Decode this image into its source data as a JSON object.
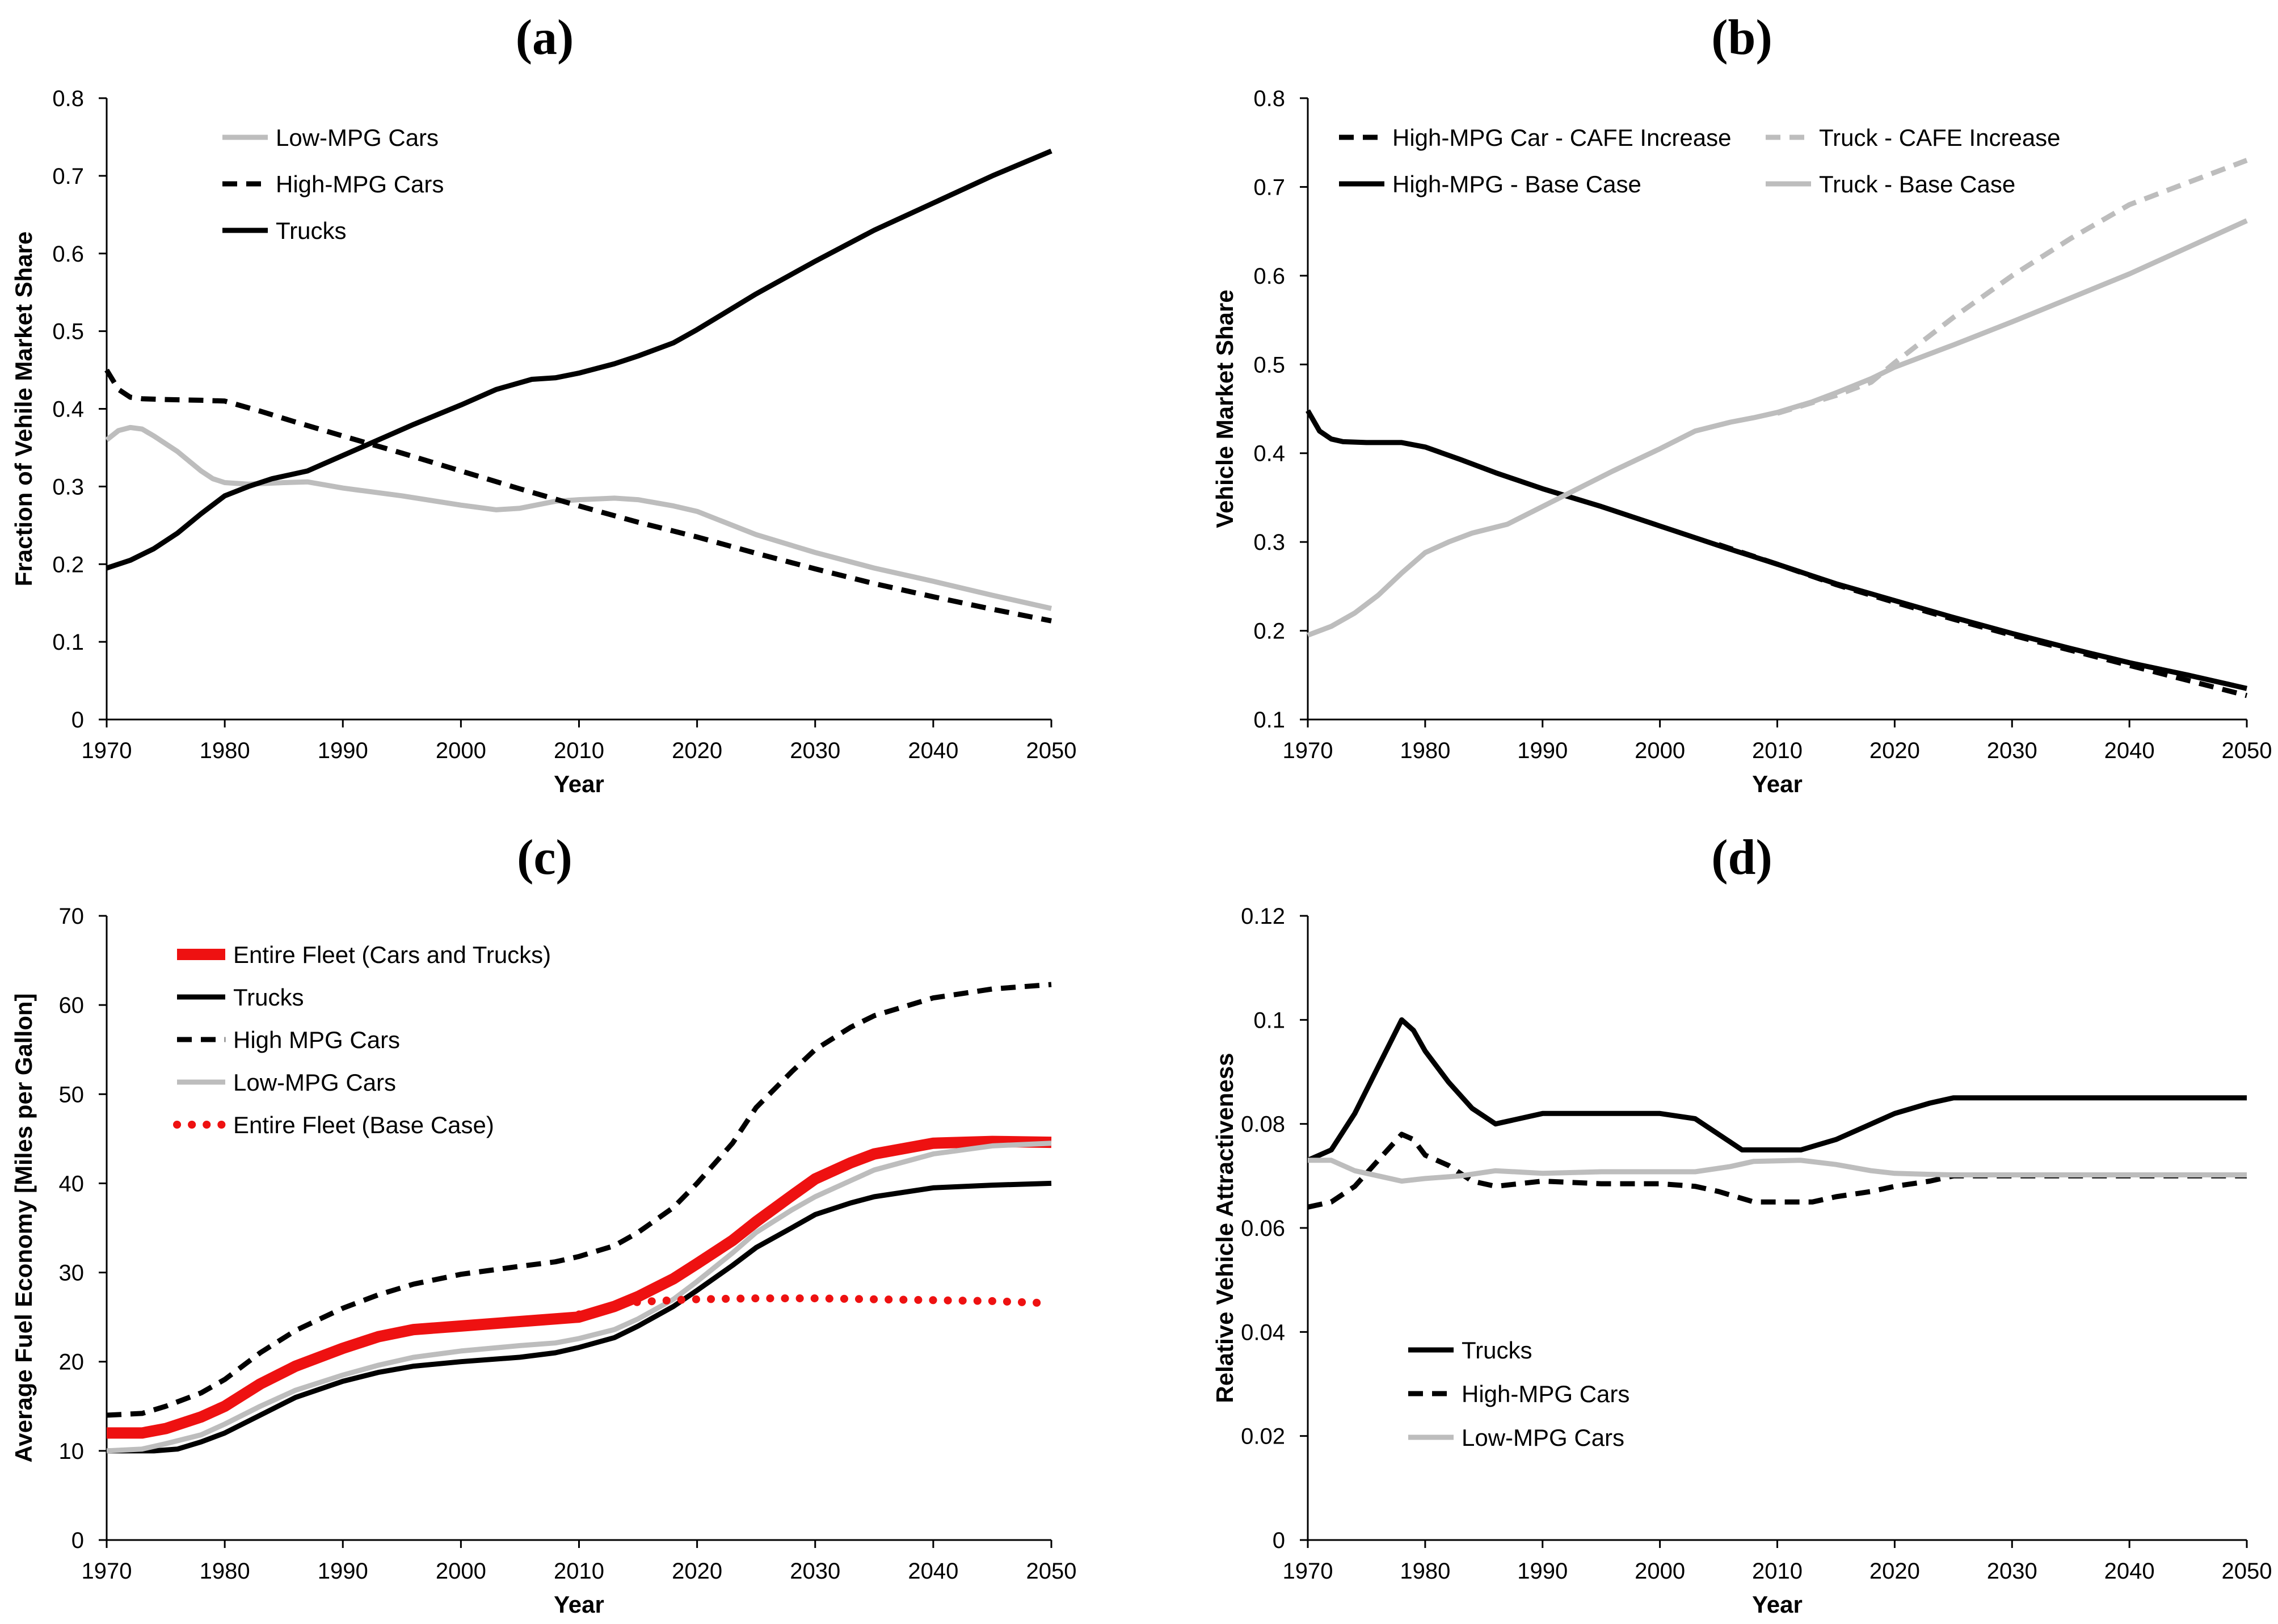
{
  "colors": {
    "black": "#000000",
    "gray": "#bdbdbd",
    "red": "#ee1111"
  },
  "chart_data": [
    {
      "type": "line",
      "panel": "(a)",
      "title": "(a)",
      "xlabel": "Year",
      "ylabel": "Fraction of Vehile Market Share",
      "xlim": [
        1970,
        2050
      ],
      "ylim": [
        0,
        0.8
      ],
      "xticks": [
        1970,
        1980,
        1990,
        2000,
        2010,
        2020,
        2030,
        2040,
        2050
      ],
      "xtick_labels": [
        "1970",
        "1980",
        "1990",
        "2000",
        "2010",
        "2020",
        "2030",
        "2040",
        "2050"
      ],
      "yticks": [
        0,
        0.1,
        0.2,
        0.3,
        0.4,
        0.5,
        0.6,
        0.7,
        0.8
      ],
      "ytick_labels": [
        "0",
        "0.1",
        "0.2",
        "0.3",
        "0.4",
        "0.5",
        "0.6",
        "0.7",
        "0.8"
      ],
      "legend_position": "top-left",
      "series": [
        {
          "name": "Low-MPG Cars",
          "color": "gray",
          "dash": "solid",
          "x": [
            1970,
            1971,
            1972,
            1973,
            1974,
            1976,
            1978,
            1979,
            1980,
            1982,
            1985,
            1987,
            1990,
            1995,
            2000,
            2003,
            2005,
            2008,
            2010,
            2013,
            2015,
            2018,
            2020,
            2025,
            2030,
            2035,
            2040,
            2045,
            2050
          ],
          "y": [
            0.36,
            0.372,
            0.376,
            0.374,
            0.365,
            0.345,
            0.32,
            0.31,
            0.305,
            0.303,
            0.305,
            0.306,
            0.298,
            0.288,
            0.276,
            0.27,
            0.272,
            0.281,
            0.283,
            0.285,
            0.283,
            0.275,
            0.268,
            0.238,
            0.215,
            0.195,
            0.178,
            0.16,
            0.143
          ]
        },
        {
          "name": "High-MPG Cars",
          "color": "black",
          "dash": "dashed",
          "x": [
            1970,
            1971,
            1972,
            1973,
            1975,
            1978,
            1980,
            1983,
            1986,
            1990,
            1995,
            2000,
            2005,
            2010,
            2015,
            2020,
            2025,
            2030,
            2035,
            2040,
            2045,
            2050
          ],
          "y": [
            0.45,
            0.425,
            0.415,
            0.413,
            0.412,
            0.411,
            0.41,
            0.397,
            0.383,
            0.365,
            0.343,
            0.32,
            0.297,
            0.275,
            0.254,
            0.235,
            0.214,
            0.194,
            0.175,
            0.158,
            0.142,
            0.127
          ]
        },
        {
          "name": "Trucks",
          "color": "black",
          "dash": "solid",
          "x": [
            1970,
            1972,
            1974,
            1976,
            1978,
            1980,
            1982,
            1984,
            1987,
            1990,
            1993,
            1996,
            2000,
            2003,
            2006,
            2008,
            2010,
            2013,
            2015,
            2018,
            2020,
            2025,
            2030,
            2035,
            2040,
            2045,
            2050
          ],
          "y": [
            0.195,
            0.205,
            0.22,
            0.24,
            0.265,
            0.288,
            0.3,
            0.31,
            0.32,
            0.34,
            0.36,
            0.38,
            0.405,
            0.425,
            0.438,
            0.44,
            0.446,
            0.458,
            0.468,
            0.485,
            0.502,
            0.548,
            0.59,
            0.63,
            0.665,
            0.7,
            0.732
          ]
        }
      ]
    },
    {
      "type": "line",
      "panel": "(b)",
      "title": "(b)",
      "xlabel": "Year",
      "ylabel": "Vehicle Market Share",
      "xlim": [
        1970,
        2050
      ],
      "ylim": [
        0.1,
        0.8
      ],
      "xticks": [
        1970,
        1980,
        1990,
        2000,
        2010,
        2020,
        2030,
        2040,
        2050
      ],
      "xtick_labels": [
        "1970",
        "1980",
        "1990",
        "2000",
        "2010",
        "2020",
        "2030",
        "2040",
        "2050"
      ],
      "yticks": [
        0.1,
        0.2,
        0.3,
        0.4,
        0.5,
        0.6,
        0.7,
        0.8
      ],
      "ytick_labels": [
        "0.1",
        "0.2",
        "0.3",
        "0.4",
        "0.5",
        "0.6",
        "0.7",
        "0.8"
      ],
      "legend_position": "top",
      "series": [
        {
          "name": "High-MPG Car - CAFE Increase",
          "color": "black",
          "dash": "dashed",
          "x": [
            2005,
            2010,
            2015,
            2020,
            2025,
            2030,
            2035,
            2040,
            2045,
            2050
          ],
          "y": [
            0.297,
            0.275,
            0.252,
            0.232,
            0.213,
            0.195,
            0.178,
            0.161,
            0.144,
            0.127
          ]
        },
        {
          "name": "High-MPG - Base Case",
          "color": "black",
          "dash": "solid",
          "x": [
            1970,
            1971,
            1972,
            1973,
            1975,
            1978,
            1980,
            1983,
            1986,
            1990,
            1995,
            2000,
            2005,
            2010,
            2015,
            2020,
            2025,
            2030,
            2035,
            2040,
            2045,
            2050
          ],
          "y": [
            0.448,
            0.425,
            0.416,
            0.413,
            0.412,
            0.412,
            0.407,
            0.393,
            0.378,
            0.36,
            0.34,
            0.318,
            0.296,
            0.275,
            0.253,
            0.234,
            0.215,
            0.197,
            0.18,
            0.164,
            0.15,
            0.135
          ]
        },
        {
          "name": "Truck - CAFE Increase",
          "color": "gray",
          "dash": "dashed",
          "x": [
            2010,
            2015,
            2018,
            2020,
            2025,
            2030,
            2035,
            2040,
            2045,
            2050
          ],
          "y": [
            0.445,
            0.465,
            0.48,
            0.502,
            0.553,
            0.6,
            0.642,
            0.68,
            0.705,
            0.73
          ]
        },
        {
          "name": "Truck - Base Case",
          "color": "gray",
          "dash": "solid",
          "x": [
            1970,
            1972,
            1974,
            1976,
            1978,
            1980,
            1982,
            1984,
            1987,
            1990,
            1993,
            1996,
            2000,
            2003,
            2006,
            2008,
            2010,
            2013,
            2015,
            2018,
            2020,
            2025,
            2030,
            2035,
            2040,
            2045,
            2050
          ],
          "y": [
            0.195,
            0.205,
            0.22,
            0.24,
            0.265,
            0.288,
            0.3,
            0.31,
            0.32,
            0.34,
            0.36,
            0.38,
            0.405,
            0.425,
            0.435,
            0.44,
            0.446,
            0.458,
            0.468,
            0.484,
            0.497,
            0.522,
            0.548,
            0.575,
            0.602,
            0.632,
            0.662
          ]
        }
      ]
    },
    {
      "type": "line",
      "panel": "(c)",
      "title": "(c)",
      "xlabel": "Year",
      "ylabel": "Average Fuel Economy [Miles per Gallon]",
      "xlim": [
        1970,
        2050
      ],
      "ylim": [
        0,
        70
      ],
      "xticks": [
        1970,
        1980,
        1990,
        2000,
        2010,
        2020,
        2030,
        2040,
        2050
      ],
      "xtick_labels": [
        "1970",
        "1980",
        "1990",
        "2000",
        "2010",
        "2020",
        "2030",
        "2040",
        "2050"
      ],
      "yticks": [
        0,
        10,
        20,
        30,
        40,
        50,
        60,
        70
      ],
      "ytick_labels": [
        "0",
        "10",
        "20",
        "30",
        "40",
        "50",
        "60",
        "70"
      ],
      "legend_position": "top-left",
      "series": [
        {
          "name": "Entire Fleet (Cars and Trucks)",
          "color": "red",
          "dash": "thick",
          "x": [
            1970,
            1973,
            1975,
            1978,
            1980,
            1983,
            1986,
            1990,
            1993,
            1996,
            2000,
            2005,
            2010,
            2013,
            2015,
            2018,
            2020,
            2023,
            2025,
            2028,
            2030,
            2033,
            2035,
            2040,
            2045,
            2050
          ],
          "y": [
            12,
            12,
            12.5,
            13.8,
            15,
            17.5,
            19.5,
            21.5,
            22.8,
            23.6,
            24,
            24.5,
            25,
            26.2,
            27.3,
            29.3,
            31,
            33.6,
            35.7,
            38.6,
            40.5,
            42.3,
            43.3,
            44.5,
            44.7,
            44.6
          ]
        },
        {
          "name": "Trucks",
          "color": "black",
          "dash": "solid",
          "x": [
            1970,
            1974,
            1976,
            1978,
            1980,
            1983,
            1986,
            1990,
            1993,
            1996,
            2000,
            2005,
            2008,
            2010,
            2013,
            2015,
            2018,
            2020,
            2023,
            2025,
            2028,
            2030,
            2033,
            2035,
            2040,
            2045,
            2050
          ],
          "y": [
            10,
            10,
            10.2,
            11,
            12,
            14,
            16,
            17.8,
            18.8,
            19.5,
            20,
            20.5,
            21,
            21.6,
            22.7,
            24,
            26.2,
            28,
            30.8,
            32.8,
            35,
            36.5,
            37.8,
            38.5,
            39.5,
            39.8,
            40
          ]
        },
        {
          "name": "High MPG Cars",
          "color": "black",
          "dash": "dashed",
          "x": [
            1970,
            1973,
            1975,
            1978,
            1980,
            1983,
            1986,
            1990,
            1993,
            1996,
            2000,
            2005,
            2008,
            2010,
            2013,
            2015,
            2018,
            2020,
            2023,
            2025,
            2028,
            2030,
            2033,
            2035,
            2040,
            2045,
            2050
          ],
          "y": [
            14,
            14.2,
            15,
            16.5,
            18,
            21,
            23.5,
            26,
            27.5,
            28.7,
            29.8,
            30.7,
            31.2,
            31.8,
            33,
            34.5,
            37.3,
            40,
            44.5,
            48.5,
            52.5,
            55,
            57.5,
            58.8,
            60.8,
            61.8,
            62.3
          ]
        },
        {
          "name": "Low-MPG Cars",
          "color": "gray",
          "dash": "solid",
          "x": [
            1970,
            1973,
            1975,
            1978,
            1980,
            1983,
            1986,
            1990,
            1993,
            1996,
            2000,
            2005,
            2008,
            2010,
            2013,
            2015,
            2018,
            2020,
            2023,
            2025,
            2028,
            2030,
            2033,
            2035,
            2040,
            2045,
            2050
          ],
          "y": [
            10,
            10.2,
            10.8,
            11.8,
            13,
            15,
            16.8,
            18.5,
            19.6,
            20.5,
            21.2,
            21.8,
            22.1,
            22.6,
            23.6,
            24.8,
            27,
            29,
            32.2,
            34.5,
            37,
            38.5,
            40.3,
            41.5,
            43.3,
            44.2,
            44.5
          ]
        },
        {
          "name": "Entire Fleet (Base Case)",
          "color": "red",
          "dash": "dotted",
          "x": [
            2010,
            2013,
            2015,
            2018,
            2020,
            2025,
            2030,
            2035,
            2040,
            2045,
            2049
          ],
          "y": [
            25.3,
            26.2,
            26.7,
            26.9,
            27,
            27.1,
            27.1,
            27,
            26.9,
            26.8,
            26.6
          ]
        }
      ]
    },
    {
      "type": "line",
      "panel": "(d)",
      "title": "(d)",
      "xlabel": "Year",
      "ylabel": "Relative Vehicle Attractiveness",
      "xlim": [
        1970,
        2050
      ],
      "ylim": [
        0,
        0.12
      ],
      "xticks": [
        1970,
        1980,
        1990,
        2000,
        2010,
        2020,
        2030,
        2040,
        2050
      ],
      "xtick_labels": [
        "1970",
        "1980",
        "1990",
        "2000",
        "2010",
        "2020",
        "2030",
        "2040",
        "2050"
      ],
      "yticks": [
        0,
        0.02,
        0.04,
        0.06,
        0.08,
        0.1,
        0.12
      ],
      "ytick_labels": [
        "0",
        "0.02",
        "0.04",
        "0.06",
        "0.08",
        "0.1",
        "0.12"
      ],
      "legend_position": "bottom-left",
      "series": [
        {
          "name": "Trucks",
          "color": "black",
          "dash": "solid",
          "x": [
            1970,
            1972,
            1974,
            1976,
            1978,
            1979,
            1980,
            1982,
            1984,
            1986,
            1988,
            1990,
            1992,
            1995,
            2000,
            2003,
            2005,
            2007,
            2009,
            2012,
            2015,
            2018,
            2020,
            2023,
            2025,
            2030,
            2035,
            2040,
            2045,
            2050
          ],
          "y": [
            0.073,
            0.075,
            0.082,
            0.091,
            0.1,
            0.098,
            0.094,
            0.088,
            0.083,
            0.08,
            0.081,
            0.082,
            0.082,
            0.082,
            0.082,
            0.081,
            0.078,
            0.075,
            0.075,
            0.075,
            0.077,
            0.08,
            0.082,
            0.084,
            0.085,
            0.085,
            0.085,
            0.085,
            0.085,
            0.085
          ]
        },
        {
          "name": "High-MPG Cars",
          "color": "black",
          "dash": "dashed",
          "x": [
            1970,
            1972,
            1974,
            1976,
            1978,
            1979,
            1980,
            1982,
            1984,
            1986,
            1990,
            1995,
            2000,
            2003,
            2005,
            2008,
            2010,
            2013,
            2015,
            2018,
            2020,
            2023,
            2025,
            2030,
            2035,
            2040,
            2045,
            2050
          ],
          "y": [
            0.064,
            0.065,
            0.068,
            0.073,
            0.078,
            0.077,
            0.074,
            0.072,
            0.069,
            0.068,
            0.069,
            0.0685,
            0.0685,
            0.068,
            0.067,
            0.065,
            0.065,
            0.065,
            0.066,
            0.067,
            0.068,
            0.069,
            0.07,
            0.07,
            0.07,
            0.07,
            0.07,
            0.07
          ]
        },
        {
          "name": "Low-MPG Cars",
          "color": "gray",
          "dash": "solid",
          "x": [
            1970,
            1972,
            1974,
            1976,
            1978,
            1980,
            1983,
            1986,
            1990,
            1995,
            2000,
            2003,
            2006,
            2008,
            2012,
            2015,
            2018,
            2020,
            2023,
            2025,
            2030,
            2035,
            2040,
            2045,
            2050
          ],
          "y": [
            0.073,
            0.073,
            0.071,
            0.07,
            0.069,
            0.0695,
            0.07,
            0.071,
            0.0705,
            0.0708,
            0.0708,
            0.0708,
            0.0718,
            0.0728,
            0.073,
            0.0722,
            0.071,
            0.0705,
            0.0703,
            0.0702,
            0.0702,
            0.0702,
            0.0702,
            0.0702,
            0.0702
          ]
        }
      ]
    }
  ]
}
